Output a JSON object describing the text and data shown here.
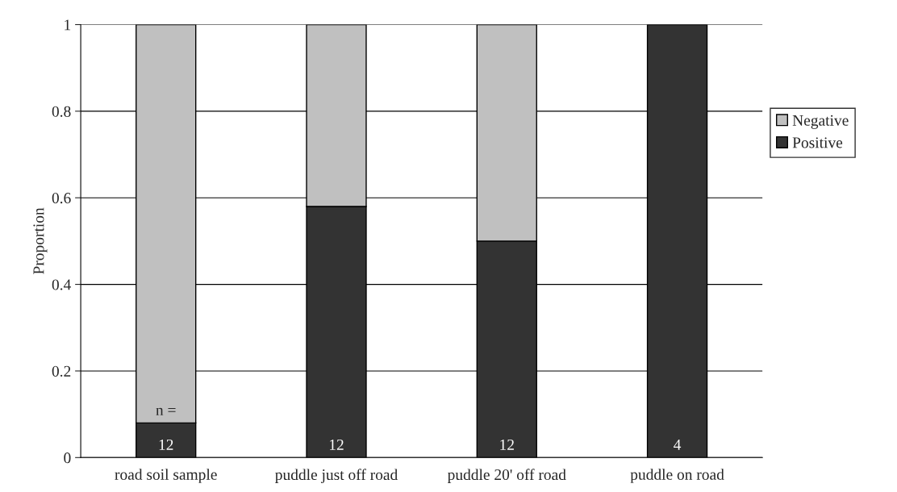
{
  "chart_data": {
    "type": "bar",
    "stacked": true,
    "categories": [
      "road soil sample",
      "puddle just off road",
      "puddle 20' off road",
      "puddle on road"
    ],
    "series": [
      {
        "name": "Positive",
        "color": "#333333",
        "values": [
          0.08,
          0.58,
          0.5,
          1
        ]
      },
      {
        "name": "Negative",
        "color": "#c0c0c0",
        "values": [
          0.92,
          0.42,
          0.5,
          null
        ]
      }
    ],
    "ylabel": "Proportion",
    "ylim": [
      0,
      1
    ],
    "yticks": [
      0,
      0.2,
      0.4,
      0.6,
      0.8,
      1
    ],
    "grid": "y",
    "legend": "right",
    "annotations": [
      "n =",
      "12",
      "12",
      "12",
      "4"
    ]
  }
}
